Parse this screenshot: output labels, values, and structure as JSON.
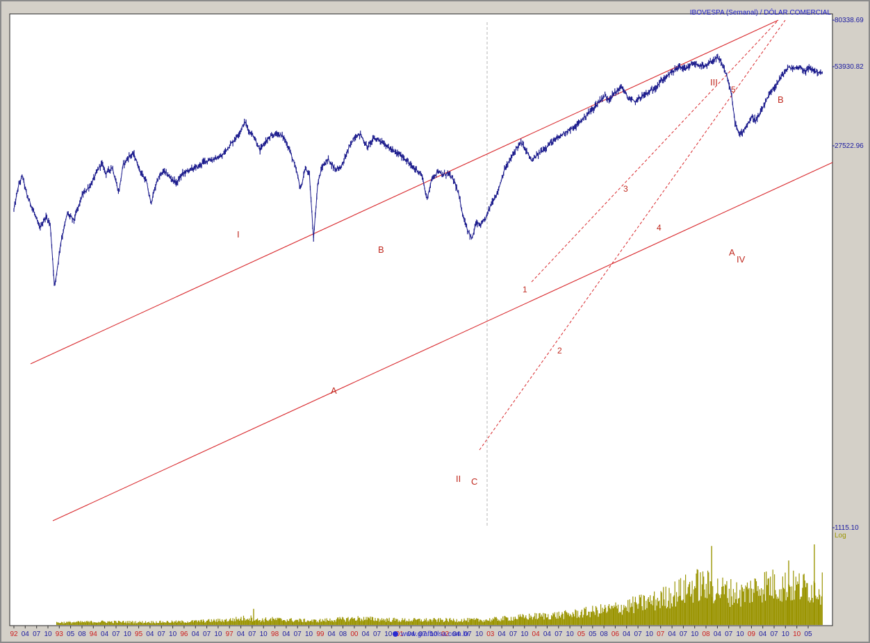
{
  "chart_data": {
    "type": "line",
    "title": "IBOVESPA (Semanal) / DÓLAR COMERCIAL",
    "scale_label": "Log",
    "log_scale": true,
    "grid": false,
    "watermark": "www.grafbolsa.com.br",
    "colors": {
      "price": "#1a1a8c",
      "volume": "#9a9400",
      "trendline": "#d8262a",
      "year_tick": "#cc1a1a",
      "month_tick": "#1a1aa0",
      "y_tick": "#1a1aa0",
      "title": "#1a1acc",
      "log_label": "#9a9400",
      "background": "#ffffff"
    },
    "y_ticks": [
      "80338.69",
      "53930.82",
      "27522.96",
      "1115.10"
    ],
    "x_ticks": [
      {
        "label": "92",
        "year": true
      },
      {
        "label": "04",
        "year": false
      },
      {
        "label": "07",
        "year": false
      },
      {
        "label": "10",
        "year": false
      },
      {
        "label": "93",
        "year": true
      },
      {
        "label": "05",
        "year": false
      },
      {
        "label": "08",
        "year": false
      },
      {
        "label": "94",
        "year": true
      },
      {
        "label": "04",
        "year": false
      },
      {
        "label": "07",
        "year": false
      },
      {
        "label": "10",
        "year": false
      },
      {
        "label": "95",
        "year": true
      },
      {
        "label": "04",
        "year": false
      },
      {
        "label": "07",
        "year": false
      },
      {
        "label": "10",
        "year": false
      },
      {
        "label": "96",
        "year": true
      },
      {
        "label": "04",
        "year": false
      },
      {
        "label": "07",
        "year": false
      },
      {
        "label": "10",
        "year": false
      },
      {
        "label": "97",
        "year": true
      },
      {
        "label": "04",
        "year": false
      },
      {
        "label": "07",
        "year": false
      },
      {
        "label": "10",
        "year": false
      },
      {
        "label": "98",
        "year": true
      },
      {
        "label": "04",
        "year": false
      },
      {
        "label": "07",
        "year": false
      },
      {
        "label": "10",
        "year": false
      },
      {
        "label": "99",
        "year": true
      },
      {
        "label": "04",
        "year": false
      },
      {
        "label": "08",
        "year": false
      },
      {
        "label": "00",
        "year": true
      },
      {
        "label": "04",
        "year": false
      },
      {
        "label": "07",
        "year": false
      },
      {
        "label": "10",
        "year": false
      },
      {
        "label": "01",
        "year": true
      },
      {
        "label": "04",
        "year": false
      },
      {
        "label": "07",
        "year": false
      },
      {
        "label": "10",
        "year": false
      },
      {
        "label": "02",
        "year": true
      },
      {
        "label": "04",
        "year": false
      },
      {
        "label": "07",
        "year": false
      },
      {
        "label": "10",
        "year": false
      },
      {
        "label": "03",
        "year": true
      },
      {
        "label": "04",
        "year": false
      },
      {
        "label": "07",
        "year": false
      },
      {
        "label": "10",
        "year": false
      },
      {
        "label": "04",
        "year": true
      },
      {
        "label": "04",
        "year": false
      },
      {
        "label": "07",
        "year": false
      },
      {
        "label": "10",
        "year": false
      },
      {
        "label": "05",
        "year": true
      },
      {
        "label": "05",
        "year": false
      },
      {
        "label": "08",
        "year": false
      },
      {
        "label": "06",
        "year": true
      },
      {
        "label": "04",
        "year": false
      },
      {
        "label": "07",
        "year": false
      },
      {
        "label": "10",
        "year": false
      },
      {
        "label": "07",
        "year": true
      },
      {
        "label": "04",
        "year": false
      },
      {
        "label": "07",
        "year": false
      },
      {
        "label": "10",
        "year": false
      },
      {
        "label": "08",
        "year": true
      },
      {
        "label": "04",
        "year": false
      },
      {
        "label": "07",
        "year": false
      },
      {
        "label": "10",
        "year": false
      },
      {
        "label": "09",
        "year": true
      },
      {
        "label": "04",
        "year": false
      },
      {
        "label": "07",
        "year": false
      },
      {
        "label": "10",
        "year": false
      },
      {
        "label": "10",
        "year": true
      },
      {
        "label": "05",
        "year": false
      }
    ],
    "series": [
      {
        "values": [
          [
            1992.0,
            13000
          ],
          [
            1992.1,
            17000
          ],
          [
            1992.2,
            19500
          ],
          [
            1992.3,
            15500
          ],
          [
            1992.45,
            13000
          ],
          [
            1992.6,
            10500
          ],
          [
            1992.75,
            12000
          ],
          [
            1992.85,
            11000
          ],
          [
            1992.95,
            5200
          ],
          [
            1993.1,
            9000
          ],
          [
            1993.25,
            12500
          ],
          [
            1993.4,
            11500
          ],
          [
            1993.6,
            15500
          ],
          [
            1993.8,
            17500
          ],
          [
            1993.95,
            20500
          ],
          [
            1994.05,
            22500
          ],
          [
            1994.15,
            20000
          ],
          [
            1994.3,
            21500
          ],
          [
            1994.45,
            15800
          ],
          [
            1994.55,
            22000
          ],
          [
            1994.7,
            24500
          ],
          [
            1994.8,
            25000
          ],
          [
            1994.95,
            20500
          ],
          [
            1995.1,
            18000
          ],
          [
            1995.2,
            14000
          ],
          [
            1995.35,
            18500
          ],
          [
            1995.5,
            20500
          ],
          [
            1995.65,
            19000
          ],
          [
            1995.8,
            17800
          ],
          [
            1995.95,
            20000
          ],
          [
            1996.15,
            21000
          ],
          [
            1996.3,
            21500
          ],
          [
            1996.45,
            23000
          ],
          [
            1996.65,
            23500
          ],
          [
            1996.85,
            24200
          ],
          [
            1997.0,
            27000
          ],
          [
            1997.15,
            29500
          ],
          [
            1997.3,
            33000
          ],
          [
            1997.4,
            36500
          ],
          [
            1997.5,
            32500
          ],
          [
            1997.6,
            31000
          ],
          [
            1997.75,
            26000
          ],
          [
            1997.85,
            28500
          ],
          [
            1998.0,
            30500
          ],
          [
            1998.15,
            32000
          ],
          [
            1998.3,
            30500
          ],
          [
            1998.45,
            26000
          ],
          [
            1998.6,
            20500
          ],
          [
            1998.7,
            16500
          ],
          [
            1998.8,
            21000
          ],
          [
            1998.9,
            20000
          ],
          [
            1999.0,
            9400
          ],
          [
            1999.1,
            17800
          ],
          [
            1999.2,
            21500
          ],
          [
            1999.35,
            23500
          ],
          [
            1999.5,
            21000
          ],
          [
            1999.65,
            21500
          ],
          [
            1999.8,
            26000
          ],
          [
            1999.95,
            30500
          ],
          [
            2000.1,
            31500
          ],
          [
            2000.25,
            27000
          ],
          [
            2000.4,
            30000
          ],
          [
            2000.55,
            29500
          ],
          [
            2000.75,
            27000
          ],
          [
            2000.9,
            25500
          ],
          [
            2001.0,
            25000
          ],
          [
            2001.15,
            23500
          ],
          [
            2001.3,
            21500
          ],
          [
            2001.45,
            20500
          ],
          [
            2001.55,
            19000
          ],
          [
            2001.65,
            14500
          ],
          [
            2001.75,
            18500
          ],
          [
            2001.9,
            20500
          ],
          [
            2002.0,
            19500
          ],
          [
            2002.15,
            20000
          ],
          [
            2002.3,
            18000
          ],
          [
            2002.4,
            15200
          ],
          [
            2002.5,
            12000
          ],
          [
            2002.6,
            10300
          ],
          [
            2002.7,
            9200
          ],
          [
            2002.8,
            11200
          ],
          [
            2002.9,
            10800
          ],
          [
            2003.0,
            11500
          ],
          [
            2003.15,
            14000
          ],
          [
            2003.3,
            16000
          ],
          [
            2003.45,
            20500
          ],
          [
            2003.6,
            23500
          ],
          [
            2003.75,
            27000
          ],
          [
            2003.85,
            28500
          ],
          [
            2003.95,
            26500
          ],
          [
            2004.1,
            23000
          ],
          [
            2004.25,
            25000
          ],
          [
            2004.4,
            26800
          ],
          [
            2004.55,
            28500
          ],
          [
            2004.7,
            30000
          ],
          [
            2004.85,
            32000
          ],
          [
            2004.95,
            33000
          ],
          [
            2005.1,
            34000
          ],
          [
            2005.25,
            37000
          ],
          [
            2005.4,
            40000
          ],
          [
            2005.55,
            43000
          ],
          [
            2005.7,
            47000
          ],
          [
            2005.8,
            49500
          ],
          [
            2005.9,
            47500
          ],
          [
            2006.05,
            51500
          ],
          [
            2006.2,
            55000
          ],
          [
            2006.35,
            48000
          ],
          [
            2006.5,
            46000
          ],
          [
            2006.65,
            49000
          ],
          [
            2006.8,
            51000
          ],
          [
            2006.95,
            53500
          ],
          [
            2007.1,
            58000
          ],
          [
            2007.25,
            62000
          ],
          [
            2007.4,
            66000
          ],
          [
            2007.55,
            70000
          ],
          [
            2007.7,
            67000
          ],
          [
            2007.85,
            72000
          ],
          [
            2008.0,
            71000
          ],
          [
            2008.15,
            69000
          ],
          [
            2008.3,
            74000
          ],
          [
            2008.45,
            77000
          ],
          [
            2008.55,
            71000
          ],
          [
            2008.65,
            63000
          ],
          [
            2008.75,
            52000
          ],
          [
            2008.85,
            36000
          ],
          [
            2008.95,
            31000
          ],
          [
            2009.1,
            34500
          ],
          [
            2009.25,
            38500
          ],
          [
            2009.35,
            37000
          ],
          [
            2009.5,
            43000
          ],
          [
            2009.65,
            50000
          ],
          [
            2009.8,
            56000
          ],
          [
            2009.95,
            63000
          ],
          [
            2010.1,
            69000
          ],
          [
            2010.2,
            68000
          ],
          [
            2010.35,
            69500
          ],
          [
            2010.5,
            66000
          ],
          [
            2010.6,
            68500
          ],
          [
            2010.75,
            65500
          ],
          [
            2010.9,
            64500
          ]
        ]
      }
    ],
    "annotations": [
      {
        "label": "I"
      },
      {
        "label": "A"
      },
      {
        "label": "B"
      },
      {
        "label": "II"
      },
      {
        "label": "C"
      },
      {
        "label": "1"
      },
      {
        "label": "2"
      },
      {
        "label": "3"
      },
      {
        "label": "4"
      },
      {
        "label": "5"
      },
      {
        "label": "III"
      },
      {
        "label": "A"
      },
      {
        "label": "IV"
      },
      {
        "label": "B"
      }
    ],
    "volume": {
      "profile": [
        [
          1992.0,
          0
        ],
        [
          1992.9,
          0
        ],
        [
          1993.0,
          3
        ],
        [
          1994.0,
          4
        ],
        [
          1995.0,
          3.5
        ],
        [
          1996.0,
          4
        ],
        [
          1997.0,
          6
        ],
        [
          1997.5,
          9
        ],
        [
          1997.7,
          6
        ],
        [
          1998.0,
          7
        ],
        [
          1999.0,
          5
        ],
        [
          2000.0,
          8
        ],
        [
          2001.0,
          6
        ],
        [
          2002.0,
          6
        ],
        [
          2003.0,
          6
        ],
        [
          2004.0,
          10
        ],
        [
          2005.0,
          13
        ],
        [
          2006.0,
          20
        ],
        [
          2007.0,
          30
        ],
        [
          2008.0,
          50
        ],
        [
          2008.6,
          42
        ],
        [
          2009.0,
          38
        ],
        [
          2009.5,
          50
        ],
        [
          2010.0,
          48
        ],
        [
          2010.9,
          45
        ]
      ],
      "peaks": [
        {
          "x": 1997.6,
          "value": 20
        },
        {
          "x": 2008.3,
          "value": 98
        },
        {
          "x": 2010.1,
          "value": 80
        },
        {
          "x": 2010.7,
          "value": 100
        }
      ]
    }
  }
}
